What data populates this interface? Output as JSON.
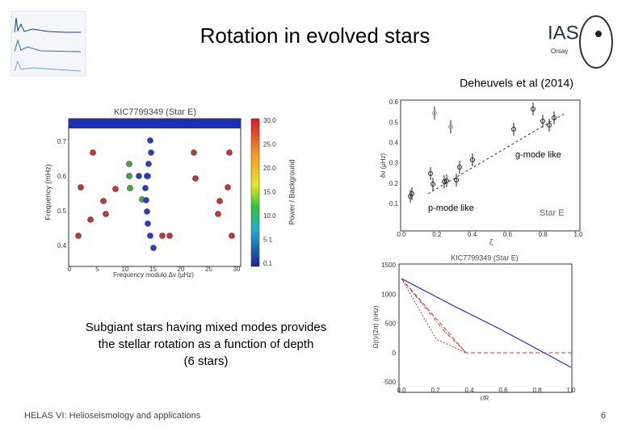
{
  "header": {
    "title": "Rotation in evolved stars",
    "citation": "Deheuvels et al (2014)"
  },
  "logo": {
    "name": "IAS",
    "place": "Orsay"
  },
  "echelle_plot": {
    "title": "KIC7799349 (Star E)",
    "x_label": "Frequency modulo Δν (μHz)",
    "y_label": "Frequency (mHz)",
    "x_ticks": [
      "0",
      "5",
      "10",
      "15",
      "20",
      "25",
      "30"
    ],
    "y_ticks": [
      "0.4",
      "0.5",
      "0.6",
      "0.7"
    ],
    "colorbar_label": "Power / Background",
    "colorbar_ticks": [
      "30.0",
      "25.0",
      "20.0",
      "15.0",
      "10.0",
      "5.1",
      "0.1"
    ]
  },
  "rotation_plot": {
    "x_label": "ζ",
    "y_label": "δν (μHz)",
    "x_ticks": [
      "0.0",
      "0.2",
      "0.4",
      "0.6",
      "0.8",
      "1.0"
    ],
    "y_ticks": [
      "0.1",
      "0.2",
      "0.3",
      "0.4",
      "0.5",
      "0.6"
    ],
    "g_mode_label": "g-mode like",
    "p_mode_label": "p-mode like",
    "star_label": "Star E"
  },
  "profile_plot": {
    "title": "KIC7799349 (Star E)",
    "x_label": "r/R",
    "y_label": "Ω(r)/(2π) (nHz)",
    "x_ticks": [
      "0.0",
      "0.2",
      "0.4",
      "0.6",
      "0.8",
      "1.0"
    ],
    "y_ticks": [
      "1500",
      "1000",
      "500",
      "0",
      "-500"
    ]
  },
  "body": {
    "lines": [
      "Subgiant stars having mixed modes provides",
      "the stellar rotation as a function of depth",
      "(6 stars)"
    ]
  },
  "footer": {
    "text": "HELAS VI: Helioseismology and applications",
    "page": "6"
  }
}
